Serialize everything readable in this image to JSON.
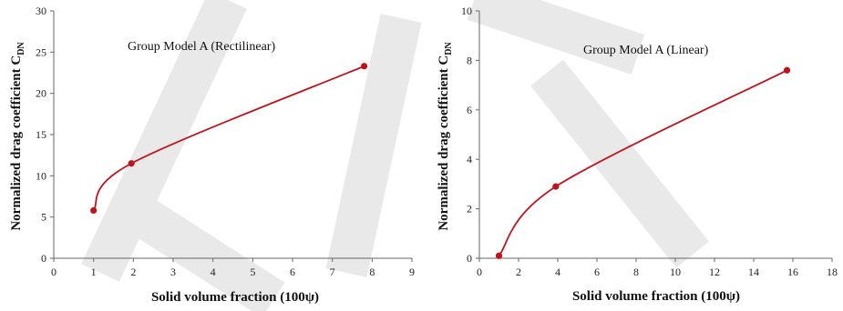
{
  "chart_data": [
    {
      "type": "line",
      "xlabel": "Solid volume fraction (100ψ)",
      "ylabel": "Normalized drag coefficient C",
      "ylabel_subscript": "DN",
      "annotation": "Group Model A (Rectilinear)",
      "xlim": [
        0,
        9
      ],
      "ylim": [
        0,
        30
      ],
      "xticks": [
        0,
        1,
        2,
        3,
        4,
        5,
        6,
        7,
        8,
        9
      ],
      "yticks": [
        0,
        5,
        10,
        15,
        20,
        25,
        30
      ],
      "grid": false,
      "series": [
        {
          "x": [
            1.0,
            1.95,
            7.8
          ],
          "y": [
            5.8,
            11.5,
            23.3
          ],
          "color": "#c0141c"
        }
      ]
    },
    {
      "type": "line",
      "xlabel": "Solid volume fraction (100ψ)",
      "ylabel": "Normalized drag coefficient C",
      "ylabel_subscript": "DN",
      "annotation": "Group Model A (Linear)",
      "xlim": [
        0,
        18
      ],
      "ylim": [
        0,
        10
      ],
      "xticks": [
        0,
        2,
        4,
        6,
        8,
        10,
        12,
        14,
        16,
        18
      ],
      "yticks": [
        0,
        2,
        4,
        6,
        8,
        10
      ],
      "grid": false,
      "series": [
        {
          "x": [
            1.0,
            3.9,
            15.7
          ],
          "y": [
            0.1,
            2.9,
            7.6
          ],
          "color": "#c0141c"
        }
      ]
    }
  ]
}
